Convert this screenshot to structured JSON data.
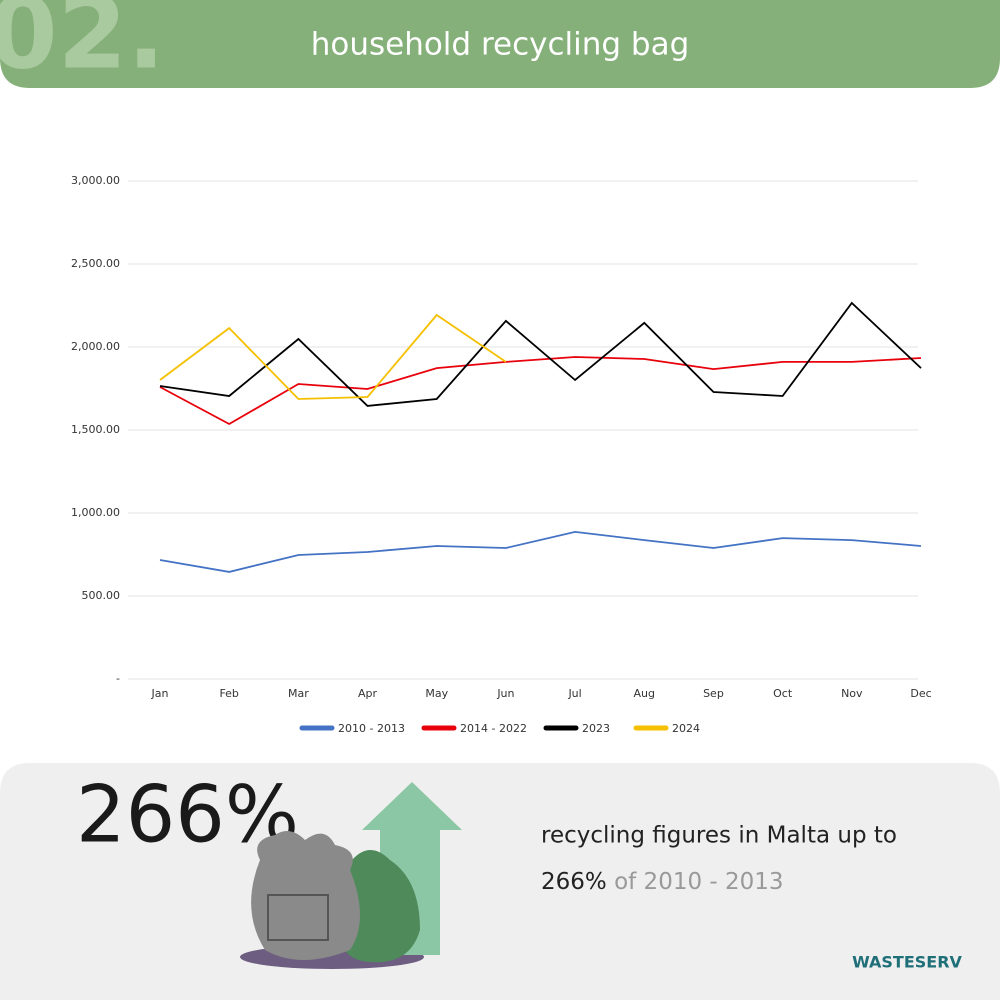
{
  "header": {
    "number": "02.",
    "title": "household recycling bag"
  },
  "chart_data": {
    "type": "line",
    "categories": [
      "Jan",
      "Feb",
      "Mar",
      "Apr",
      "May",
      "Jun",
      "Jul",
      "Aug",
      "Sep",
      "Oct",
      "Nov",
      "Dec"
    ],
    "series": [
      {
        "name": "2010 - 2013",
        "color": "#4472c4",
        "values": [
          717,
          645,
          747,
          765,
          801,
          789,
          886,
          837,
          789,
          849,
          837,
          801
        ]
      },
      {
        "name": "2014 - 2022",
        "color": "#e8000b",
        "values": [
          1759,
          1536,
          1777,
          1747,
          1873,
          1910,
          1940,
          1928,
          1867,
          1910,
          1910,
          1934
        ]
      },
      {
        "name": "2023",
        "color": "#000000",
        "values": [
          1765,
          1705,
          2048,
          1645,
          1687,
          2157,
          1801,
          2145,
          1729,
          1705,
          2265,
          1873
        ]
      },
      {
        "name": "2024",
        "color": "#f5c000",
        "values": [
          1801,
          2114,
          1687,
          1699,
          2193,
          1910,
          null,
          null,
          null,
          null,
          null,
          null
        ]
      }
    ],
    "ylim": [
      0,
      3000
    ],
    "yticks": [
      {
        "value": 0,
        "label": "-"
      },
      {
        "value": 500,
        "label": "500.00"
      },
      {
        "value": 1000,
        "label": "1,000.00"
      },
      {
        "value": 1500,
        "label": "1,500.00"
      },
      {
        "value": 2000,
        "label": "2,000.00"
      },
      {
        "value": 2500,
        "label": "2,500.00"
      },
      {
        "value": 3000,
        "label": "3,000.00"
      }
    ],
    "grid": true,
    "legend": "bottom"
  },
  "footer": {
    "stat": "266%",
    "line1": "recycling figures in Malta up to",
    "line2_highlight": "266%",
    "line2_rest": "of 2010 - 2013",
    "logo": "WASTESERV"
  }
}
